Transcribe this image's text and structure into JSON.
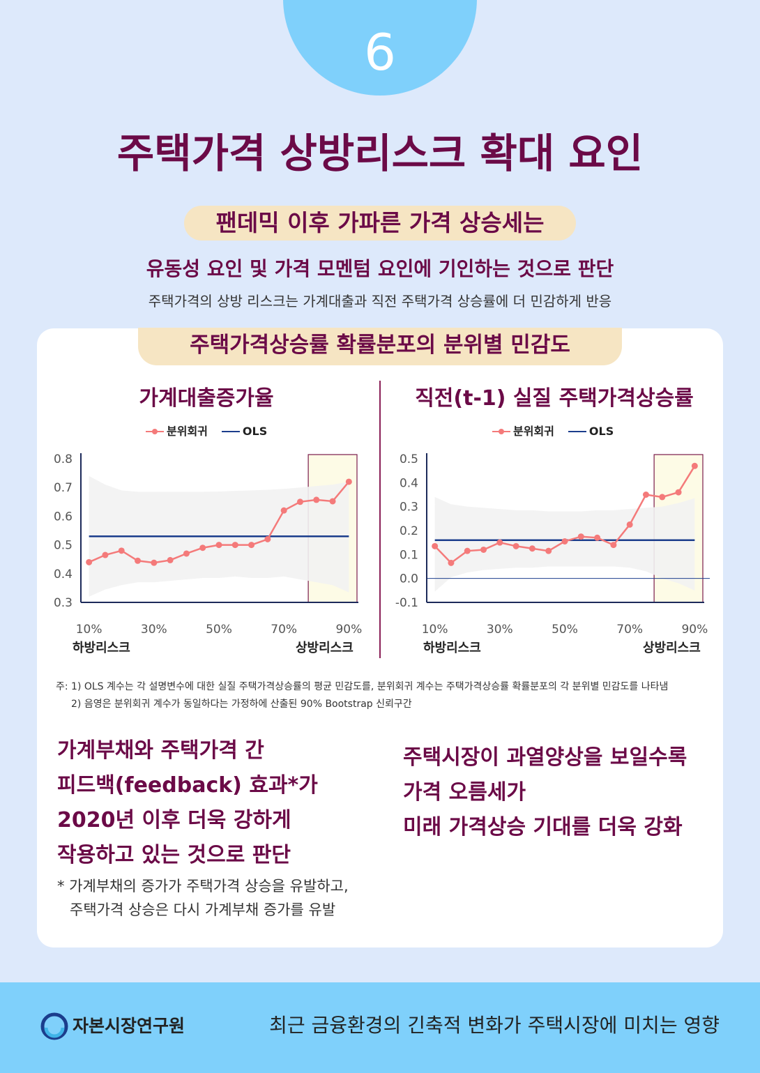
{
  "page_number": "6",
  "title": "주택가격 상방리스크 확대 요인",
  "subtitle": "팬데믹 이후 가파른 가격 상승세는",
  "lead": "유동성 요인 및 가격 모멘텀 요인에 기인하는 것으로 판단",
  "sublead": "주택가격의 상방 리스크는 가계대출과 직전 주택가격 상승률에 더 민감하게 반응",
  "card_title": "주택가격상승률 확률분포의 분위별 민감도",
  "legend": {
    "quantile": "분위회귀",
    "ols": "OLS"
  },
  "colors": {
    "quantile": "#f47a7a",
    "ols": "#1b3d8c",
    "band": "#f2f2f2",
    "highlight_fill": "#fdfbe6",
    "highlight_stroke": "#7a1a4a"
  },
  "chart_data": [
    {
      "type": "line",
      "title": "가계대출증가율",
      "x": [
        10,
        15,
        20,
        25,
        30,
        35,
        40,
        45,
        50,
        55,
        60,
        65,
        70,
        75,
        80,
        85,
        90
      ],
      "xticks": [
        "10%",
        "30%",
        "50%",
        "70%",
        "90%"
      ],
      "xtick_values": [
        10,
        30,
        50,
        70,
        90
      ],
      "x_left_label": "하방리스크",
      "x_right_label": "상방리스크",
      "ylim": [
        0.3,
        0.8
      ],
      "yticks": [
        "0.8",
        "0.7",
        "0.6",
        "0.5",
        "0.4",
        "0.3"
      ],
      "ytick_values": [
        0.8,
        0.7,
        0.6,
        0.5,
        0.4,
        0.3
      ],
      "series": [
        {
          "name": "분위회귀",
          "values": [
            0.44,
            0.465,
            0.48,
            0.445,
            0.438,
            0.447,
            0.47,
            0.49,
            0.5,
            0.5,
            0.5,
            0.52,
            0.62,
            0.65,
            0.657,
            0.652,
            0.72
          ]
        },
        {
          "name": "OLS",
          "values": [
            0.53,
            0.53,
            0.53,
            0.53,
            0.53,
            0.53,
            0.53,
            0.53,
            0.53,
            0.53,
            0.53,
            0.53,
            0.53,
            0.53,
            0.53,
            0.53,
            0.53
          ]
        }
      ],
      "band_upper": [
        0.74,
        0.71,
        0.69,
        0.685,
        0.685,
        0.685,
        0.685,
        0.685,
        0.686,
        0.688,
        0.69,
        0.692,
        0.695,
        0.7,
        0.705,
        0.71,
        0.72
      ],
      "band_lower": [
        0.32,
        0.345,
        0.36,
        0.37,
        0.37,
        0.375,
        0.38,
        0.385,
        0.385,
        0.39,
        0.385,
        0.385,
        0.39,
        0.38,
        0.37,
        0.36,
        0.335
      ],
      "highlight_x": [
        77.5,
        92.5
      ]
    },
    {
      "type": "line",
      "title": "직전(t-1) 실질 주택가격상승률",
      "x": [
        10,
        15,
        20,
        25,
        30,
        35,
        40,
        45,
        50,
        55,
        60,
        65,
        70,
        75,
        80,
        85,
        90
      ],
      "xticks": [
        "10%",
        "30%",
        "50%",
        "70%",
        "90%"
      ],
      "xtick_values": [
        10,
        30,
        50,
        70,
        90
      ],
      "x_left_label": "하방리스크",
      "x_right_label": "상방리스크",
      "ylim": [
        -0.1,
        0.5
      ],
      "yticks": [
        "0.5",
        "0.4",
        "0.3",
        "0.2",
        "0.1",
        "0.0",
        "-0.1"
      ],
      "ytick_values": [
        0.5,
        0.4,
        0.3,
        0.2,
        0.1,
        0.0,
        -0.1
      ],
      "series": [
        {
          "name": "분위회귀",
          "values": [
            0.135,
            0.065,
            0.115,
            0.12,
            0.15,
            0.135,
            0.125,
            0.115,
            0.155,
            0.175,
            0.17,
            0.14,
            0.225,
            0.35,
            0.34,
            0.36,
            0.47
          ]
        },
        {
          "name": "OLS",
          "values": [
            0.16,
            0.16,
            0.16,
            0.16,
            0.16,
            0.16,
            0.16,
            0.16,
            0.16,
            0.16,
            0.16,
            0.16,
            0.16,
            0.16,
            0.16,
            0.16,
            0.16
          ]
        }
      ],
      "band_upper": [
        0.34,
        0.31,
        0.3,
        0.295,
        0.29,
        0.285,
        0.285,
        0.28,
        0.28,
        0.28,
        0.285,
        0.285,
        0.29,
        0.295,
        0.3,
        0.315,
        0.335
      ],
      "band_lower": [
        -0.055,
        0.005,
        0.025,
        0.035,
        0.04,
        0.045,
        0.045,
        0.05,
        0.05,
        0.05,
        0.05,
        0.05,
        0.045,
        0.03,
        0.0,
        -0.02,
        -0.05
      ],
      "highlight_x": [
        77.5,
        92.5
      ]
    }
  ],
  "notes": [
    "주: 1) OLS 계수는 각 설명변수에 대한 실질 주택가격상승률의 평균 민감도를, 분위회귀 계수는 주택가격상승률 확률분포의 각 분위별 민감도를 나타냄",
    "2) 음영은 분위회귀 계수가 동일하다는 가정하에 산출된 90% Bootstrap 신뢰구간"
  ],
  "left_conclusion": [
    "가계부채와 주택가격 간",
    "피드백(feedback) 효과*가",
    "2020년 이후 더욱 강하게",
    "작용하고 있는 것으로 판단"
  ],
  "right_conclusion": [
    "주택시장이 과열양상을 보일수록",
    "가격 오름세가",
    "미래 가격상승 기대를 더욱 강화"
  ],
  "footnote": [
    "* 가계부채의 증가가 주택가격 상승을 유발하고,",
    "주택가격 상승은 다시 가계부채 증가를 유발"
  ],
  "footer": {
    "org": "자본시장연구원",
    "report": "최근 금융환경의 긴축적 변화가 주택시장에 미치는 영향",
    "logo_icon": "kcmi-logo-icon"
  }
}
